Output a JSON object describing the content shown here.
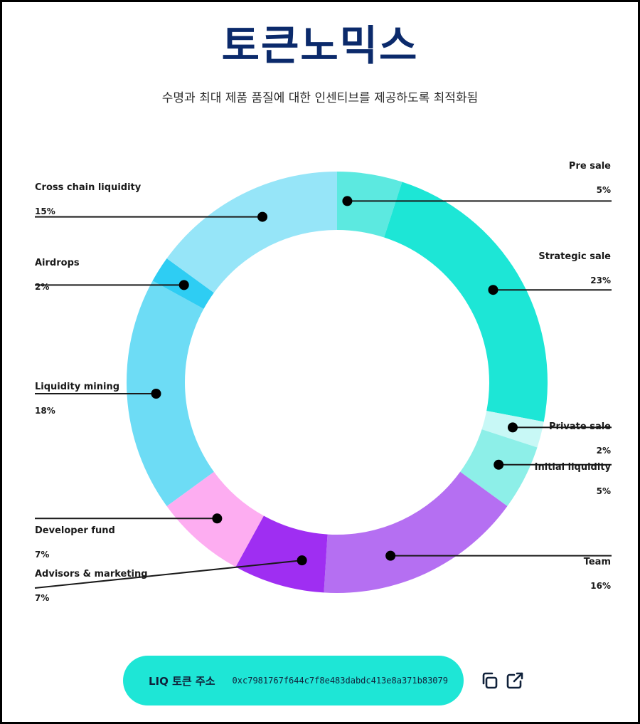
{
  "header": {
    "title": "토큰노믹스",
    "subtitle": "수명과 최대 제품 품질에 대한 인센티브를 제공하도록 최적화됨"
  },
  "colors": {
    "title": "#0b2a6b",
    "token_bar": "#1ee6d6",
    "icon": "#10213a",
    "leader": "#1a1a1a"
  },
  "chart_data": {
    "type": "pie",
    "donut": true,
    "title": "",
    "series": [
      {
        "name": "Pre sale",
        "value": 5,
        "label": "5%",
        "color": "#5ce9e0"
      },
      {
        "name": "Strategic sale",
        "value": 23,
        "label": "23%",
        "color": "#1de6d6"
      },
      {
        "name": "Private sale",
        "value": 2,
        "label": "2%",
        "color": "#c8f8f6"
      },
      {
        "name": "Initial liquidity",
        "value": 5,
        "label": "5%",
        "color": "#8defe8"
      },
      {
        "name": "Team",
        "value": 16,
        "label": "16%",
        "color": "#b56ff2"
      },
      {
        "name": "Advisors & marketing",
        "value": 7,
        "label": "7%",
        "color": "#9f2ef2"
      },
      {
        "name": "Developer fund",
        "value": 7,
        "label": "7%",
        "color": "#fdadf1"
      },
      {
        "name": "Liquidity mining",
        "value": 18,
        "label": "18%",
        "color": "#6ddcf5"
      },
      {
        "name": "Airdrops",
        "value": 2,
        "label": "2%",
        "color": "#2ecdf3"
      },
      {
        "name": "Cross chain liquidity",
        "value": 15,
        "label": "15%",
        "color": "#96e5f8"
      }
    ]
  },
  "token": {
    "label": "LIQ 토큰 주소",
    "address": "0xc7981767f644c7f8e483dabdc413e8a371b83079"
  },
  "icons": {
    "copy": "copy-icon",
    "external": "external-link-icon"
  }
}
